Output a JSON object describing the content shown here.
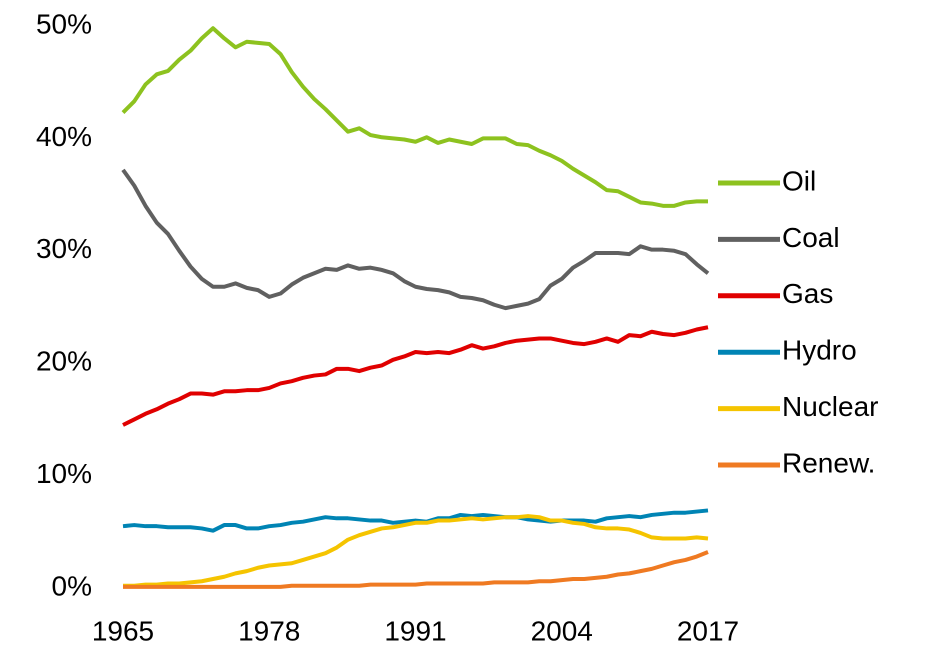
{
  "chart_data": {
    "type": "line",
    "x": [
      1965,
      1966,
      1967,
      1968,
      1969,
      1970,
      1971,
      1972,
      1973,
      1974,
      1975,
      1976,
      1977,
      1978,
      1979,
      1980,
      1981,
      1982,
      1983,
      1984,
      1985,
      1986,
      1987,
      1988,
      1989,
      1990,
      1991,
      1992,
      1993,
      1994,
      1995,
      1996,
      1997,
      1998,
      1999,
      2000,
      2001,
      2002,
      2003,
      2004,
      2005,
      2006,
      2007,
      2008,
      2009,
      2010,
      2011,
      2012,
      2013,
      2014,
      2015,
      2016,
      2017
    ],
    "series": [
      {
        "name": "Oil",
        "color": "#8dc21f",
        "values": [
          42.3,
          43.3,
          44.8,
          45.7,
          46.0,
          47.0,
          47.8,
          48.9,
          49.8,
          48.9,
          48.1,
          48.6,
          48.5,
          48.4,
          47.5,
          45.9,
          44.6,
          43.5,
          42.6,
          41.6,
          40.6,
          40.9,
          40.3,
          40.1,
          40.0,
          39.9,
          39.7,
          40.1,
          39.6,
          39.9,
          39.7,
          39.5,
          40.0,
          40.0,
          40.0,
          39.5,
          39.4,
          38.9,
          38.5,
          38.0,
          37.3,
          36.7,
          36.1,
          35.4,
          35.3,
          34.8,
          34.3,
          34.2,
          34.0,
          34.0,
          34.3,
          34.4,
          34.4
        ]
      },
      {
        "name": "Coal",
        "color": "#606060",
        "values": [
          37.2,
          35.8,
          34.0,
          32.5,
          31.5,
          30.0,
          28.6,
          27.5,
          26.8,
          26.8,
          27.1,
          26.7,
          26.5,
          25.9,
          26.2,
          27.0,
          27.6,
          28.0,
          28.4,
          28.3,
          28.7,
          28.4,
          28.5,
          28.3,
          28.0,
          27.3,
          26.8,
          26.6,
          26.5,
          26.3,
          25.9,
          25.8,
          25.6,
          25.2,
          24.9,
          25.1,
          25.3,
          25.7,
          26.9,
          27.5,
          28.5,
          29.1,
          29.8,
          29.8,
          29.8,
          29.7,
          30.4,
          30.1,
          30.1,
          30.0,
          29.7,
          28.8,
          28.0
        ]
      },
      {
        "name": "Gas",
        "color": "#e00000",
        "values": [
          14.5,
          15.0,
          15.5,
          15.9,
          16.4,
          16.8,
          17.3,
          17.3,
          17.2,
          17.5,
          17.5,
          17.6,
          17.6,
          17.8,
          18.2,
          18.4,
          18.7,
          18.9,
          19.0,
          19.5,
          19.5,
          19.3,
          19.6,
          19.8,
          20.3,
          20.6,
          21.0,
          20.9,
          21.0,
          20.9,
          21.2,
          21.6,
          21.3,
          21.5,
          21.8,
          22.0,
          22.1,
          22.2,
          22.2,
          22.0,
          21.8,
          21.7,
          21.9,
          22.2,
          21.9,
          22.5,
          22.4,
          22.8,
          22.6,
          22.5,
          22.7,
          23.0,
          23.2
        ]
      },
      {
        "name": "Hydro",
        "color": "#0084b4",
        "values": [
          5.5,
          5.6,
          5.5,
          5.5,
          5.4,
          5.4,
          5.4,
          5.3,
          5.1,
          5.6,
          5.6,
          5.3,
          5.3,
          5.5,
          5.6,
          5.8,
          5.9,
          6.1,
          6.3,
          6.2,
          6.2,
          6.1,
          6.0,
          6.0,
          5.8,
          5.9,
          6.0,
          5.9,
          6.2,
          6.2,
          6.5,
          6.4,
          6.5,
          6.4,
          6.3,
          6.3,
          6.1,
          6.0,
          5.9,
          6.0,
          6.0,
          6.0,
          5.9,
          6.2,
          6.3,
          6.4,
          6.3,
          6.5,
          6.6,
          6.7,
          6.7,
          6.8,
          6.9
        ]
      },
      {
        "name": "Nuclear",
        "color": "#f5c400",
        "values": [
          0.2,
          0.2,
          0.3,
          0.3,
          0.4,
          0.4,
          0.5,
          0.6,
          0.8,
          1.0,
          1.3,
          1.5,
          1.8,
          2.0,
          2.1,
          2.2,
          2.5,
          2.8,
          3.1,
          3.6,
          4.3,
          4.7,
          5.0,
          5.3,
          5.4,
          5.6,
          5.8,
          5.8,
          6.0,
          6.0,
          6.1,
          6.2,
          6.1,
          6.2,
          6.3,
          6.3,
          6.4,
          6.3,
          6.0,
          6.0,
          5.8,
          5.7,
          5.4,
          5.3,
          5.3,
          5.2,
          4.9,
          4.5,
          4.4,
          4.4,
          4.4,
          4.5,
          4.4
        ]
      },
      {
        "name": "Renew.",
        "color": "#ef7a22",
        "values": [
          0.1,
          0.1,
          0.1,
          0.1,
          0.1,
          0.1,
          0.1,
          0.1,
          0.1,
          0.1,
          0.1,
          0.1,
          0.1,
          0.1,
          0.1,
          0.2,
          0.2,
          0.2,
          0.2,
          0.2,
          0.2,
          0.2,
          0.3,
          0.3,
          0.3,
          0.3,
          0.3,
          0.4,
          0.4,
          0.4,
          0.4,
          0.4,
          0.4,
          0.5,
          0.5,
          0.5,
          0.5,
          0.6,
          0.6,
          0.7,
          0.8,
          0.8,
          0.9,
          1.0,
          1.2,
          1.3,
          1.5,
          1.7,
          2.0,
          2.3,
          2.5,
          2.8,
          3.2
        ]
      }
    ],
    "xlim": [
      1965,
      2017
    ],
    "xticks": [
      1965,
      1978,
      1991,
      2004,
      2017
    ],
    "ylim": [
      0,
      50
    ],
    "yticks": [
      {
        "value": 0,
        "label": "0%"
      },
      {
        "value": 10,
        "label": "10%"
      },
      {
        "value": 20,
        "label": "20%"
      },
      {
        "value": 30,
        "label": "30%"
      },
      {
        "value": 40,
        "label": "40%"
      },
      {
        "value": 50,
        "label": "50%"
      }
    ],
    "legend": "right",
    "grid": false
  }
}
